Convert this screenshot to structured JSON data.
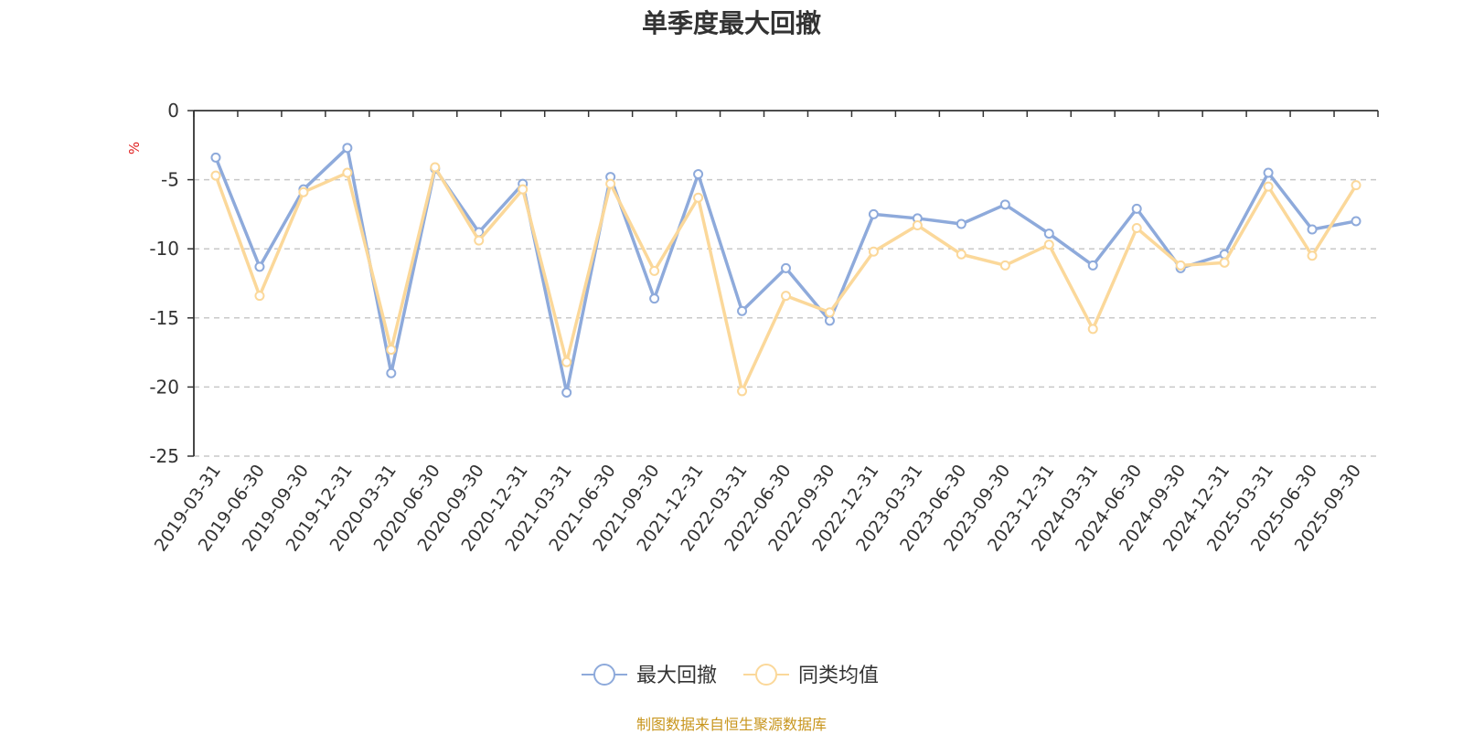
{
  "chart_data": {
    "type": "line",
    "title": "单季度最大回撤",
    "ylabel": "%",
    "ylim": [
      -25,
      0
    ],
    "yticks": [
      0,
      -5,
      -10,
      -15,
      -20,
      -25
    ],
    "grid": true,
    "legend_position": "bottom-center",
    "source": "制图数据来自恒生聚源数据库",
    "categories": [
      "2019-03-31",
      "2019-06-30",
      "2019-09-30",
      "2019-12-31",
      "2020-03-31",
      "2020-06-30",
      "2020-09-30",
      "2020-12-31",
      "2021-03-31",
      "2021-06-30",
      "2021-09-30",
      "2021-12-31",
      "2022-03-31",
      "2022-06-30",
      "2022-09-30",
      "2022-12-31",
      "2023-03-31",
      "2023-06-30",
      "2023-09-30",
      "2023-12-31",
      "2024-03-31",
      "2024-06-30",
      "2024-09-30",
      "2024-12-31",
      "2025-03-31",
      "2025-06-30",
      "2025-09-30"
    ],
    "series": [
      {
        "name": "最大回撤",
        "color": "#8eaadb",
        "values": [
          -3.4,
          -11.3,
          -5.7,
          -2.7,
          -19.0,
          -4.2,
          -8.8,
          -5.3,
          -20.4,
          -4.8,
          -13.6,
          -4.6,
          -14.5,
          -11.4,
          -15.2,
          -7.5,
          -7.8,
          -8.2,
          -6.8,
          -8.9,
          -11.2,
          -7.1,
          -11.4,
          -10.4,
          -4.5,
          -8.6,
          -8.0
        ]
      },
      {
        "name": "同类均值",
        "color": "#fbd89a",
        "values": [
          -4.7,
          -13.4,
          -5.9,
          -4.5,
          -17.3,
          -4.1,
          -9.4,
          -5.7,
          -18.2,
          -5.3,
          -11.6,
          -6.3,
          -20.3,
          -13.4,
          -14.6,
          -10.2,
          -8.3,
          -10.4,
          -11.2,
          -9.7,
          -15.8,
          -8.5,
          -11.2,
          -11.0,
          -5.5,
          -10.5,
          -5.4
        ]
      }
    ]
  }
}
